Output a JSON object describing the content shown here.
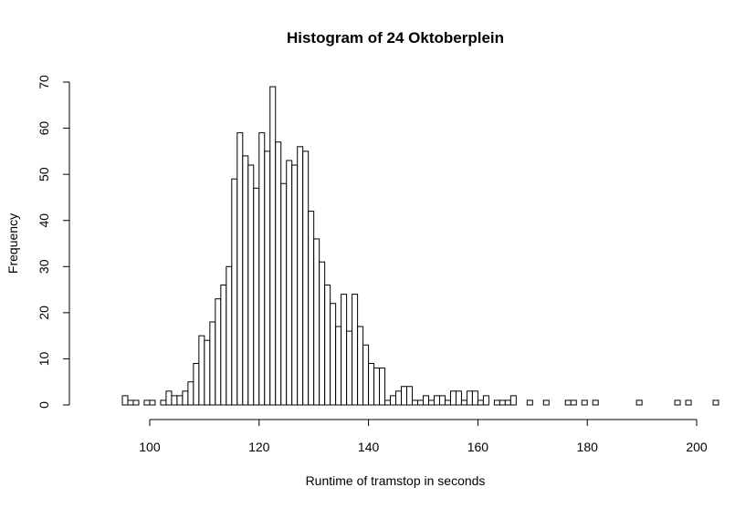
{
  "chart_data": {
    "type": "bar",
    "title": "Histogram of 24 Oktoberplein",
    "xlabel": "Runtime of tramstop in seconds",
    "ylabel": "Frequency",
    "bin_width": 1,
    "x_bin_starts": [
      95,
      96,
      97,
      98,
      99,
      100,
      101,
      102,
      103,
      104,
      105,
      106,
      107,
      108,
      109,
      110,
      111,
      112,
      113,
      114,
      115,
      116,
      117,
      118,
      119,
      120,
      121,
      122,
      123,
      124,
      125,
      126,
      127,
      128,
      129,
      130,
      131,
      132,
      133,
      134,
      135,
      136,
      137,
      138,
      139,
      140,
      141,
      142,
      143,
      144,
      145,
      146,
      147,
      148,
      149,
      150,
      151,
      152,
      153,
      154,
      155,
      156,
      157,
      158,
      159,
      160,
      161,
      162,
      163,
      164,
      165,
      166,
      167,
      168,
      169,
      170,
      171,
      172,
      173,
      174,
      175,
      176,
      177,
      178,
      179,
      180,
      181,
      182,
      183,
      184,
      185,
      186,
      187,
      188,
      189,
      190,
      191,
      192,
      193,
      194,
      195,
      196,
      197,
      198,
      199,
      200,
      201,
      202,
      203
    ],
    "values": [
      2,
      1,
      1,
      0,
      1,
      1,
      0,
      1,
      3,
      2,
      2,
      3,
      5,
      9,
      15,
      14,
      18,
      23,
      26,
      30,
      49,
      59,
      54,
      52,
      47,
      59,
      55,
      69,
      57,
      48,
      53,
      52,
      56,
      55,
      42,
      36,
      31,
      26,
      22,
      17,
      24,
      16,
      24,
      17,
      13,
      9,
      8,
      8,
      1,
      2,
      3,
      4,
      4,
      1,
      1,
      2,
      1,
      2,
      2,
      1,
      3,
      3,
      1,
      3,
      3,
      1,
      2,
      0,
      1,
      1,
      1,
      2,
      0,
      0,
      1,
      0,
      0,
      1,
      0,
      0,
      0,
      1,
      1,
      0,
      1,
      0,
      1,
      0,
      0,
      0,
      0,
      0,
      0,
      0,
      1,
      0,
      0,
      0,
      0,
      0,
      0,
      1,
      0,
      1,
      0,
      0,
      0,
      0,
      1
    ],
    "xlim": [
      95,
      204
    ],
    "ylim": [
      0,
      70
    ],
    "x_ticks": [
      100,
      120,
      140,
      160,
      180,
      200
    ],
    "y_ticks": [
      0,
      10,
      20,
      30,
      40,
      50,
      60,
      70
    ],
    "x_tick_labels": [
      "100",
      "120",
      "140",
      "160",
      "180",
      "200"
    ],
    "y_tick_labels": [
      "0",
      "10",
      "20",
      "30",
      "40",
      "50",
      "60",
      "70"
    ],
    "grid": false,
    "bar_fill": "#ffffff",
    "bar_stroke": "#000000"
  }
}
